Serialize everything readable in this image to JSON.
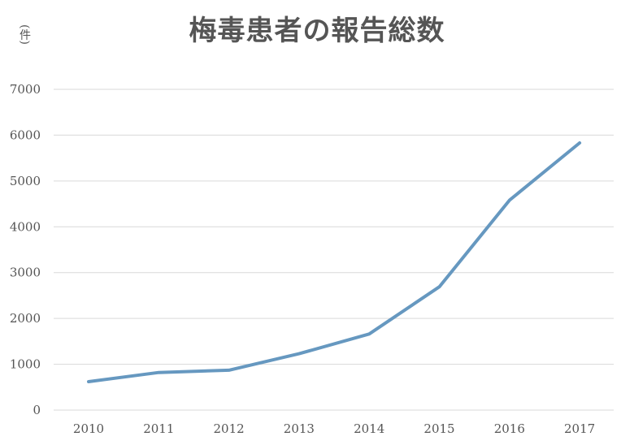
{
  "chart_data": {
    "type": "line",
    "title": "梅毒患者の報告総数",
    "ylabel": "(件)",
    "xlabel": "",
    "categories": [
      "2010",
      "2011",
      "2012",
      "2013",
      "2014",
      "2015",
      "2016",
      "2017"
    ],
    "series": [
      {
        "values": [
          620,
          820,
          870,
          1230,
          1660,
          2690,
          4580,
          5830
        ]
      }
    ],
    "ylim": [
      0,
      7000
    ],
    "yticks": [
      0,
      1000,
      2000,
      3000,
      4000,
      5000,
      6000,
      7000
    ],
    "grid": true,
    "legend": "none",
    "line_color": "#6698c0",
    "grid_color": "#d9d9d9"
  }
}
